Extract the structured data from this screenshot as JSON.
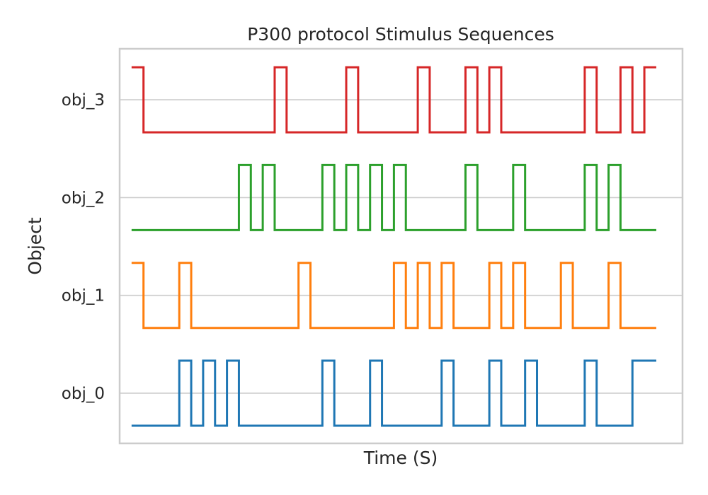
{
  "chart_data": {
    "type": "line",
    "title": "P300 protocol Stimulus Sequences",
    "xlabel": "Time (S)",
    "ylabel": "Object",
    "x_ticks_shown": false,
    "grid": "horizontal",
    "drawstyle": "steps-post",
    "categories": [
      "obj_0",
      "obj_1",
      "obj_2",
      "obj_3"
    ],
    "xlim": [
      -1,
      46.2
    ],
    "x": [
      0,
      1,
      2,
      3,
      4,
      5,
      6,
      7,
      8,
      9,
      10,
      11,
      12,
      13,
      14,
      15,
      16,
      17,
      18,
      19,
      20,
      21,
      22,
      23,
      24,
      25,
      26,
      27,
      28,
      29,
      30,
      31,
      32,
      33,
      34,
      35,
      36,
      37,
      38,
      39,
      40,
      41,
      42,
      43
    ],
    "series": [
      {
        "name": "obj_0",
        "color": "#1f77b4",
        "values": [
          0,
          0,
          0,
          0,
          1,
          0,
          1,
          0,
          1,
          0,
          0,
          0,
          0,
          0,
          0,
          0,
          1,
          0,
          0,
          0,
          1,
          0,
          0,
          0,
          0,
          0,
          1,
          0,
          0,
          0,
          1,
          0,
          0,
          1,
          0,
          0,
          0,
          0,
          1,
          0,
          0,
          0,
          1,
          1
        ]
      },
      {
        "name": "obj_1",
        "color": "#ff7f0e",
        "values": [
          1,
          0,
          0,
          0,
          1,
          0,
          0,
          0,
          0,
          0,
          0,
          0,
          0,
          0,
          1,
          0,
          0,
          0,
          0,
          0,
          0,
          0,
          1,
          0,
          1,
          0,
          1,
          0,
          0,
          0,
          1,
          0,
          1,
          0,
          0,
          0,
          1,
          0,
          0,
          0,
          1,
          0,
          0,
          0
        ]
      },
      {
        "name": "obj_2",
        "color": "#2ca02c",
        "values": [
          0,
          0,
          0,
          0,
          0,
          0,
          0,
          0,
          0,
          1,
          0,
          1,
          0,
          0,
          0,
          0,
          1,
          0,
          1,
          0,
          1,
          0,
          1,
          0,
          0,
          0,
          0,
          0,
          1,
          0,
          0,
          0,
          1,
          0,
          0,
          0,
          0,
          0,
          1,
          0,
          1,
          0,
          0,
          0
        ]
      },
      {
        "name": "obj_3",
        "color": "#d62728",
        "values": [
          1,
          0,
          0,
          0,
          0,
          0,
          0,
          0,
          0,
          0,
          0,
          0,
          1,
          0,
          0,
          0,
          0,
          0,
          1,
          0,
          0,
          0,
          0,
          0,
          1,
          0,
          0,
          0,
          1,
          0,
          1,
          0,
          0,
          0,
          0,
          0,
          0,
          0,
          1,
          0,
          0,
          1,
          0,
          1
        ]
      }
    ]
  }
}
